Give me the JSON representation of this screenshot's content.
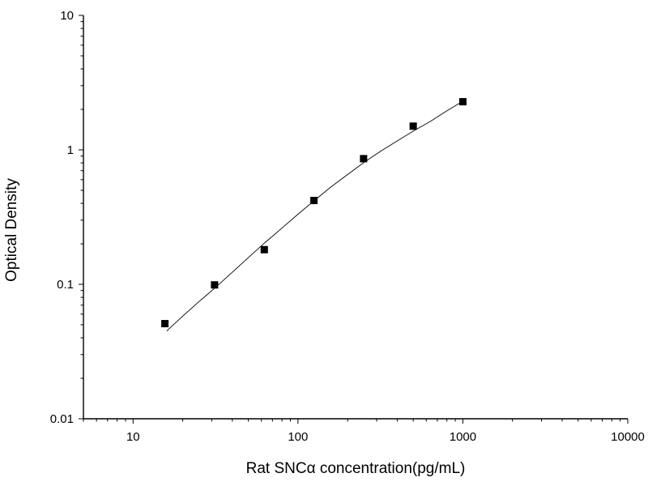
{
  "chart_data": {
    "type": "scatter",
    "xlabel": "Rat SNCα  concentration(pg/mL)",
    "ylabel": "Optical Density",
    "xscale": "log",
    "yscale": "log",
    "xlim": [
      5,
      10000
    ],
    "ylim": [
      0.01,
      10
    ],
    "x_ticks": [
      "10",
      "100",
      "1000",
      "10000"
    ],
    "y_ticks": [
      "0.01",
      "0.1",
      "1",
      "10"
    ],
    "grid": false,
    "legend": "none",
    "marker_color": "#000000",
    "line_color": "#000000",
    "points": [
      {
        "x": 15.6,
        "y": 0.051
      },
      {
        "x": 31.2,
        "y": 0.099
      },
      {
        "x": 62.5,
        "y": 0.181
      },
      {
        "x": 125,
        "y": 0.42
      },
      {
        "x": 250,
        "y": 0.86
      },
      {
        "x": 500,
        "y": 1.5
      },
      {
        "x": 1000,
        "y": 2.28
      }
    ],
    "fit_curve": {
      "x": [
        16,
        20,
        25,
        32,
        40,
        50,
        63,
        80,
        100,
        126,
        158,
        200,
        251,
        316,
        398,
        501,
        631,
        794,
        1000
      ],
      "y": [
        0.045,
        0.058,
        0.074,
        0.096,
        0.123,
        0.158,
        0.204,
        0.262,
        0.332,
        0.421,
        0.528,
        0.655,
        0.805,
        0.975,
        1.16,
        1.38,
        1.62,
        1.94,
        2.3
      ]
    }
  }
}
